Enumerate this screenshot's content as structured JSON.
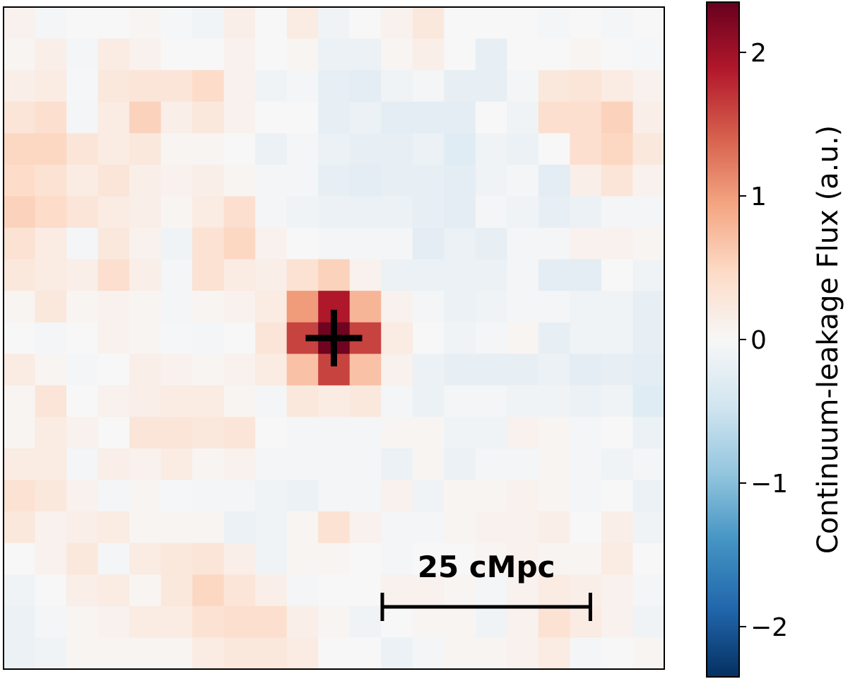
{
  "chart_data": {
    "type": "heatmap",
    "title": "",
    "xlabel": "",
    "ylabel": "",
    "colorbar": {
      "label": "Continuum-leakage Flux (a.u.)",
      "range": [
        -2.35,
        2.35
      ],
      "ticks": [
        {
          "value": 2,
          "label": "2"
        },
        {
          "value": 1,
          "label": "1"
        },
        {
          "value": 0,
          "label": "0"
        },
        {
          "value": -1,
          "label": "−1"
        },
        {
          "value": -2,
          "label": "−2"
        }
      ],
      "colormap": [
        "#053061",
        "#2166ac",
        "#4393c3",
        "#92c5de",
        "#d1e5f0",
        "#f7f7f7",
        "#fddbc7",
        "#f4a582",
        "#d6604d",
        "#b2182b",
        "#67001f"
      ]
    },
    "marker": {
      "type": "cross",
      "row": 10,
      "col": 10
    },
    "scalebar": {
      "label": "25 cMpc",
      "length_pixels": 7
    },
    "grid_rows": 21,
    "grid_cols": 21,
    "values": [
      [
        0.1,
        -0.05,
        0.0,
        0.0,
        0.05,
        -0.03,
        -0.08,
        0.15,
        0.0,
        0.2,
        -0.1,
        0.0,
        0.1,
        0.25,
        0.0,
        0.0,
        0.0,
        -0.05,
        0.0,
        -0.05,
        0.0
      ],
      [
        0.05,
        0.15,
        -0.05,
        0.2,
        0.1,
        0.0,
        0.0,
        0.1,
        0.0,
        0.05,
        -0.15,
        -0.15,
        0.05,
        0.15,
        0.0,
        -0.2,
        0.0,
        0.0,
        0.05,
        0.0,
        -0.03
      ],
      [
        0.15,
        0.2,
        -0.03,
        0.25,
        0.3,
        0.3,
        0.45,
        0.1,
        -0.1,
        -0.05,
        -0.2,
        -0.25,
        -0.1,
        -0.05,
        -0.2,
        -0.2,
        -0.05,
        0.25,
        0.3,
        0.2,
        0.1
      ],
      [
        0.3,
        0.4,
        -0.05,
        0.2,
        0.55,
        0.15,
        0.25,
        0.1,
        0.0,
        0.0,
        -0.2,
        -0.15,
        -0.25,
        -0.25,
        -0.25,
        0.0,
        -0.1,
        0.4,
        0.4,
        0.55,
        0.15
      ],
      [
        0.5,
        0.5,
        0.3,
        0.2,
        0.25,
        0.05,
        0.05,
        0.0,
        -0.15,
        -0.05,
        -0.15,
        -0.2,
        -0.2,
        -0.15,
        -0.3,
        -0.1,
        -0.15,
        0.0,
        0.4,
        0.5,
        0.25
      ],
      [
        0.45,
        0.35,
        0.2,
        0.3,
        0.15,
        0.1,
        0.15,
        0.05,
        -0.05,
        -0.05,
        -0.2,
        -0.25,
        -0.2,
        -0.2,
        -0.25,
        -0.1,
        -0.05,
        -0.25,
        0.15,
        0.3,
        0.1
      ],
      [
        0.55,
        0.45,
        0.3,
        0.2,
        0.15,
        0.05,
        0.2,
        0.4,
        -0.05,
        -0.1,
        -0.15,
        -0.15,
        -0.15,
        -0.2,
        -0.25,
        -0.05,
        -0.1,
        -0.2,
        -0.15,
        -0.05,
        -0.05
      ],
      [
        0.35,
        0.2,
        -0.05,
        0.25,
        0.1,
        -0.1,
        0.35,
        0.5,
        0.1,
        0.0,
        -0.05,
        -0.05,
        -0.05,
        -0.25,
        -0.15,
        -0.2,
        -0.05,
        -0.05,
        0.1,
        0.1,
        0.05
      ],
      [
        0.25,
        0.2,
        0.15,
        0.4,
        0.15,
        -0.05,
        0.35,
        0.2,
        0.15,
        0.35,
        0.55,
        0.1,
        -0.15,
        -0.15,
        -0.15,
        -0.15,
        -0.05,
        -0.25,
        -0.25,
        0.0,
        -0.1
      ],
      [
        0.05,
        0.25,
        0.05,
        0.1,
        0.05,
        -0.05,
        0.05,
        0.1,
        0.2,
        1.0,
        1.9,
        0.8,
        0.1,
        -0.05,
        -0.15,
        -0.1,
        -0.05,
        -0.05,
        -0.1,
        -0.1,
        -0.2
      ],
      [
        0.0,
        -0.05,
        0.0,
        0.1,
        0.05,
        -0.03,
        -0.05,
        0.0,
        0.3,
        1.6,
        2.3,
        1.6,
        0.2,
        0.0,
        -0.1,
        -0.05,
        0.05,
        -0.2,
        -0.1,
        -0.1,
        -0.2
      ],
      [
        0.2,
        0.05,
        -0.05,
        0.0,
        0.15,
        0.1,
        0.05,
        0.1,
        0.2,
        0.7,
        1.6,
        0.7,
        0.1,
        -0.15,
        -0.2,
        -0.2,
        -0.2,
        -0.15,
        -0.25,
        -0.2,
        -0.25
      ],
      [
        0.05,
        0.3,
        0.0,
        0.1,
        0.15,
        0.2,
        0.2,
        0.05,
        -0.05,
        0.25,
        0.2,
        0.25,
        -0.05,
        -0.15,
        -0.05,
        -0.05,
        -0.1,
        -0.1,
        -0.15,
        -0.1,
        -0.3
      ],
      [
        0.05,
        0.2,
        0.1,
        0.0,
        0.3,
        0.3,
        0.25,
        0.3,
        0.0,
        -0.05,
        -0.05,
        -0.05,
        0.05,
        0.05,
        -0.1,
        -0.1,
        0.1,
        0.05,
        -0.05,
        0.0,
        -0.15
      ],
      [
        0.2,
        0.2,
        -0.05,
        0.15,
        0.1,
        0.2,
        0.05,
        0.1,
        -0.05,
        -0.05,
        -0.05,
        -0.05,
        -0.15,
        0.05,
        -0.15,
        -0.05,
        -0.05,
        0.05,
        -0.05,
        -0.1,
        -0.05
      ],
      [
        0.35,
        0.25,
        0.1,
        -0.05,
        0.05,
        -0.03,
        -0.05,
        -0.05,
        -0.1,
        -0.15,
        -0.05,
        -0.05,
        0.1,
        -0.1,
        0.05,
        0.05,
        0.1,
        0.05,
        -0.05,
        0.0,
        -0.15
      ],
      [
        0.25,
        0.1,
        0.15,
        0.2,
        0.05,
        0.05,
        0.05,
        -0.15,
        -0.1,
        0.05,
        0.35,
        0.1,
        -0.05,
        -0.05,
        0.05,
        0.1,
        0.1,
        0.15,
        0.0,
        0.15,
        -0.1
      ],
      [
        0.0,
        0.1,
        0.25,
        -0.05,
        0.2,
        0.25,
        0.3,
        0.15,
        -0.1,
        0.05,
        0.05,
        0.0,
        -0.05,
        0.0,
        0.0,
        0.05,
        0.1,
        0.05,
        0.05,
        0.2,
        0.0
      ],
      [
        -0.1,
        0.0,
        0.15,
        0.2,
        0.05,
        0.25,
        0.5,
        0.3,
        0.15,
        -0.05,
        0.0,
        0.0,
        0.1,
        0.1,
        0.05,
        -0.05,
        0.1,
        0.2,
        0.15,
        0.1,
        -0.05
      ],
      [
        -0.15,
        -0.05,
        0.05,
        0.1,
        0.2,
        0.2,
        0.35,
        0.4,
        0.4,
        0.15,
        0.05,
        -0.1,
        0.0,
        0.05,
        0.05,
        -0.1,
        0.1,
        0.35,
        0.2,
        0.1,
        -0.1
      ],
      [
        -0.15,
        -0.1,
        0.05,
        0.05,
        0.05,
        0.05,
        0.2,
        0.25,
        0.25,
        0.2,
        0.0,
        0.0,
        -0.15,
        -0.05,
        0.05,
        0.05,
        0.1,
        0.2,
        -0.05,
        0.0,
        0.05
      ]
    ]
  }
}
